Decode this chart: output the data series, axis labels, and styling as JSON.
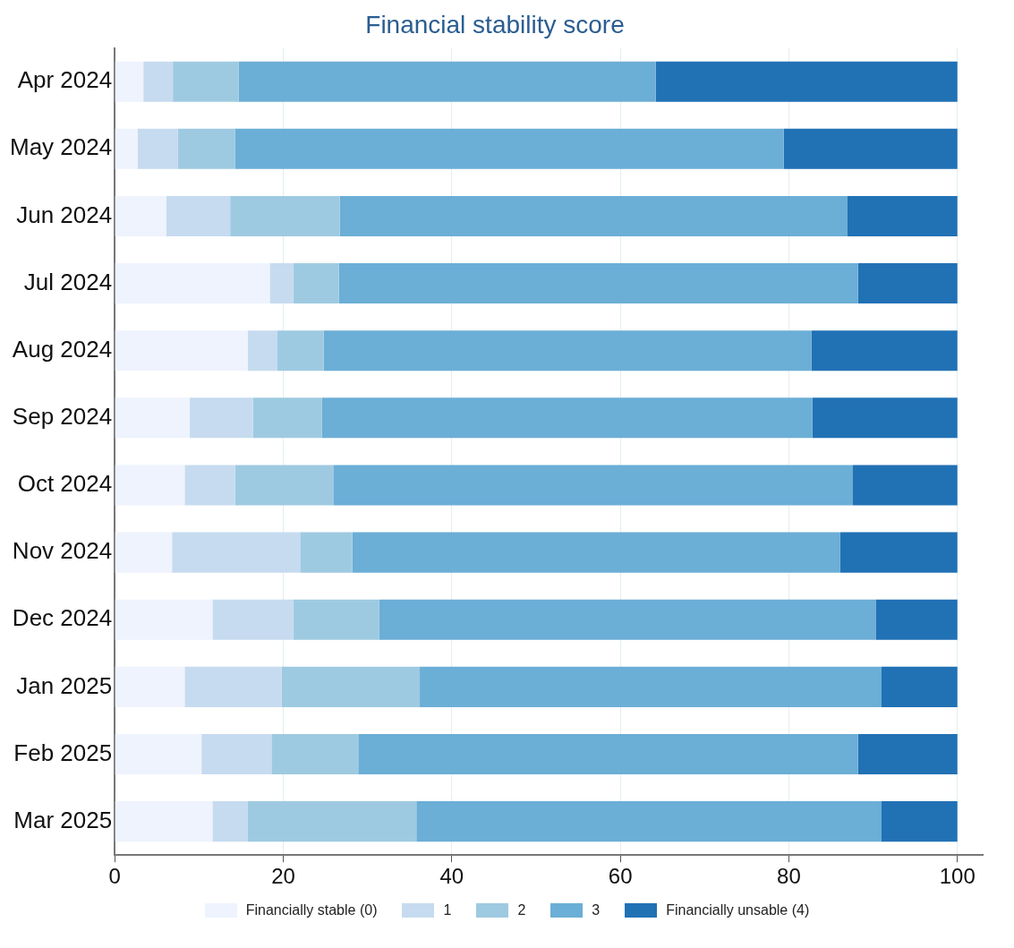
{
  "chart_data": {
    "type": "bar",
    "title": "Financial stability score",
    "orientation": "horizontal",
    "stacked": true,
    "categories": [
      "Apr 2024",
      "May 2024",
      "Jun 2024",
      "Jul 2024",
      "Aug 2024",
      "Sep 2024",
      "Oct 2024",
      "Nov 2024",
      "Dec 2024",
      "Jan 2025",
      "Feb 2025",
      "Mar 2025"
    ],
    "series": [
      {
        "name": "Financially stable (0)",
        "color": "#eef3fd",
        "values": [
          3.4,
          2.7,
          6.1,
          18.4,
          15.8,
          8.9,
          8.3,
          6.8,
          11.6,
          8.3,
          10.3,
          11.6
        ]
      },
      {
        "name": "1",
        "color": "#c6dbef",
        "values": [
          3.5,
          4.8,
          7.6,
          2.8,
          3.5,
          7.5,
          6.0,
          15.2,
          9.6,
          11.5,
          8.3,
          4.2
        ]
      },
      {
        "name": "2",
        "color": "#9ecae1",
        "values": [
          7.8,
          6.8,
          13.0,
          5.4,
          5.5,
          8.2,
          11.7,
          6.2,
          10.2,
          16.4,
          10.3,
          20.0
        ]
      },
      {
        "name": "3",
        "color": "#6baed6",
        "values": [
          49.5,
          65.1,
          60.2,
          61.6,
          57.9,
          58.2,
          61.6,
          57.9,
          58.9,
          54.8,
          59.3,
          55.2
        ]
      },
      {
        "name": "Financially unsable (4)",
        "color": "#2171b5",
        "values": [
          35.8,
          20.6,
          13.1,
          11.8,
          17.3,
          17.2,
          12.4,
          13.9,
          9.7,
          9.0,
          11.8,
          9.0
        ]
      }
    ],
    "xlim": [
      0,
      103
    ],
    "xticks": [
      0,
      20,
      40,
      60,
      80,
      100
    ],
    "grid": "x",
    "legend": "bottom"
  }
}
